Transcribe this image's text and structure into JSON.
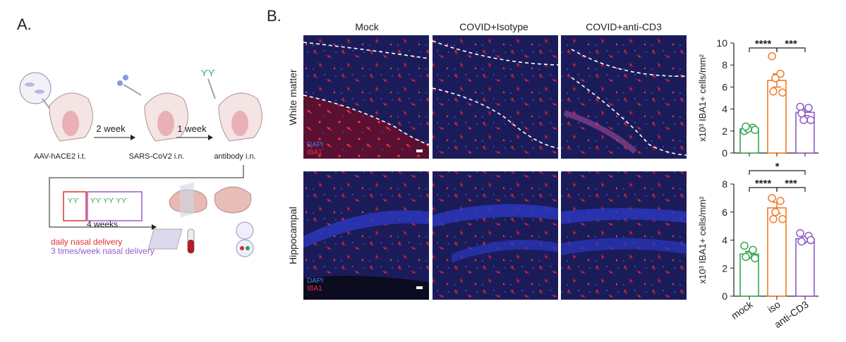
{
  "panel_a": {
    "label": "A.",
    "steps": [
      "AAV-hACE2 i.t.",
      "SARS-CoV2 i.n.",
      "antibody i.n."
    ],
    "intervals": [
      "2 week",
      "1 week"
    ],
    "duration": "4 weeks",
    "schedules": [
      {
        "text": "daily nasal delivery",
        "color": "#e0312b"
      },
      {
        "text": "3 times/week nasal delivery",
        "color": "#9b59d0"
      }
    ]
  },
  "panel_b": {
    "label": "B.",
    "columns": [
      "Mock",
      "COVID+Isotype",
      "COVID+anti-CD3"
    ],
    "rows": [
      "White matter",
      "Hippocampal"
    ],
    "stains": [
      "DAPI",
      "IBA1"
    ]
  },
  "chart_data": [
    {
      "type": "bar",
      "y_label": "x10³ IBA1+ cells/mm²",
      "categories": [
        null,
        null,
        null
      ],
      "values": [
        2.2,
        6.6,
        3.7
      ],
      "errors": [
        0.1,
        0.6,
        0.3
      ],
      "points": [
        [
          2.0,
          2.3,
          2.2,
          2.1,
          2.4
        ],
        [
          8.8,
          7.2,
          6.8,
          5.5,
          5.6
        ],
        [
          4.2,
          4.1,
          3.0,
          3.0,
          3.6
        ]
      ],
      "colors": [
        "#3aa655",
        "#f07c2a",
        "#8e5bc7"
      ],
      "ylim": [
        0,
        10
      ],
      "yticks": [
        0,
        2,
        4,
        6,
        8,
        10
      ],
      "annotations": [
        "****",
        "***"
      ]
    },
    {
      "type": "bar",
      "y_label": "x10³ IBA1+ cells/mm²",
      "categories": [
        "mock",
        "iso",
        "anti-CD3"
      ],
      "values": [
        3.0,
        6.3,
        4.1
      ],
      "errors": [
        0.2,
        0.4,
        0.1
      ],
      "points": [
        [
          3.6,
          3.3,
          2.9,
          2.7,
          2.8
        ],
        [
          7.0,
          6.8,
          6.0,
          5.5,
          5.5
        ],
        [
          4.5,
          4.3,
          4.0,
          4.0,
          3.9
        ]
      ],
      "colors": [
        "#3aa655",
        "#f07c2a",
        "#8e5bc7"
      ],
      "ylim": [
        0,
        8
      ],
      "yticks": [
        0,
        2,
        4,
        6,
        8
      ],
      "annotations": [
        "****",
        "***",
        "*"
      ]
    }
  ]
}
